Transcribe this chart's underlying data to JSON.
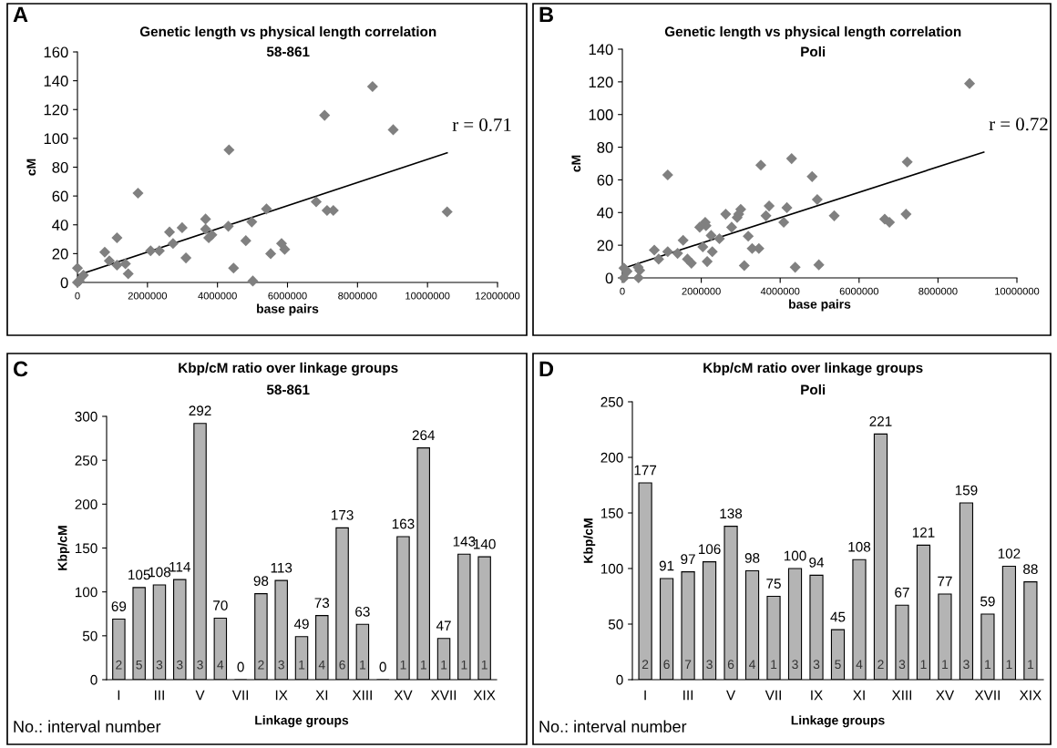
{
  "chart_data": [
    {
      "type": "scatter",
      "title": "Genetic length vs physical length correlation",
      "subtitle": "58-861",
      "xlabel": "base pairs",
      "ylabel": "cM",
      "xlim": [
        0,
        12000000
      ],
      "xticks": [
        0,
        2000000,
        4000000,
        6000000,
        8000000,
        10000000,
        12000000
      ],
      "ylim": [
        0,
        160
      ],
      "yticks": [
        0,
        20,
        40,
        60,
        80,
        100,
        120,
        140,
        160
      ],
      "annotations": [
        "A",
        {
          "text": "r = 0.71",
          "x": 10560000,
          "y": 90
        }
      ],
      "series": [
        {
          "type": "scatter",
          "marker": "diamond",
          "color": "#808080",
          "x": [
            0,
            0,
            170000,
            50000,
            780000,
            910000,
            1130000,
            1130000,
            1370000,
            1450000,
            1730000,
            2090000,
            2340000,
            2630000,
            2730000,
            2990000,
            3100000,
            3660000,
            3660000,
            3750000,
            3840000,
            4310000,
            4330000,
            4460000,
            4810000,
            4980000,
            5010000,
            5400000,
            5520000,
            5830000,
            5920000,
            6820000,
            7060000,
            7130000,
            7310000,
            8430000,
            9020000,
            10560000
          ],
          "values": [
            0,
            10,
            5,
            1,
            21,
            15,
            12,
            31,
            13,
            6,
            62,
            22,
            22,
            35,
            27,
            38,
            17,
            44,
            37,
            31,
            33,
            39,
            92,
            10,
            29,
            42,
            1,
            51,
            20,
            27,
            23,
            56,
            116,
            50,
            50,
            136,
            106,
            49
          ]
        },
        {
          "type": "line",
          "marker": "none",
          "color": "#000000",
          "x": [
            0,
            10560000
          ],
          "values": [
            5,
            90
          ]
        }
      ]
    },
    {
      "type": "scatter",
      "title": "Genetic length vs physical length correlation",
      "subtitle": "Poli",
      "xlabel": "base pairs",
      "ylabel": "cM",
      "xlim": [
        0,
        10000000
      ],
      "xticks": [
        0,
        2000000,
        4000000,
        6000000,
        8000000,
        10000000
      ],
      "ylim": [
        0,
        140
      ],
      "yticks": [
        0,
        20,
        40,
        60,
        80,
        100,
        120,
        140
      ],
      "annotations": [
        "B",
        {
          "text": "r = 0.72",
          "x": 9160000,
          "y": 77
        }
      ],
      "series": [
        {
          "type": "scatter",
          "marker": "diamond",
          "color": "#808080",
          "x": [
            40000,
            40000,
            120000,
            400000,
            440000,
            410000,
            810000,
            920000,
            1150000,
            1150000,
            1400000,
            1540000,
            1650000,
            1750000,
            1960000,
            2040000,
            2100000,
            2120000,
            2150000,
            2250000,
            2280000,
            2460000,
            2620000,
            2770000,
            2910000,
            2950000,
            3000000,
            3090000,
            3190000,
            3290000,
            3460000,
            3510000,
            3640000,
            3720000,
            4090000,
            4170000,
            4290000,
            4380000,
            4810000,
            4940000,
            4980000,
            5370000,
            6650000,
            6770000,
            7190000,
            7220000,
            8800000
          ],
          "values": [
            6,
            0,
            4,
            6.5,
            4.6,
            0,
            17,
            11.5,
            63,
            16,
            15,
            23,
            11.5,
            9,
            31,
            19,
            34,
            32,
            10,
            26,
            16,
            24,
            39,
            31,
            37,
            39,
            42,
            7.5,
            25.5,
            18,
            18,
            69,
            38,
            44,
            34,
            43,
            73,
            6.5,
            62,
            48,
            8,
            38,
            36,
            34,
            39,
            71,
            119
          ]
        },
        {
          "type": "line",
          "marker": "none",
          "color": "#000000",
          "x": [
            40000,
            9160000
          ],
          "values": [
            6,
            77
          ]
        }
      ]
    },
    {
      "type": "bar",
      "title": "Kbp/cM ratio over linkage groups",
      "subtitle": "58-861",
      "xlabel": "Linkage groups",
      "ylabel": "Kbp/cM",
      "ylim": [
        0,
        300
      ],
      "yticks": [
        0,
        50,
        100,
        150,
        200,
        250,
        300
      ],
      "data_labels": true,
      "color": "#b4b4b4",
      "categories": [
        "I",
        null,
        "III",
        null,
        "V",
        null,
        "VII",
        null,
        "IX",
        null,
        "XI",
        null,
        "XIII",
        null,
        "XV",
        null,
        "XVII",
        null,
        "XIX"
      ],
      "values": [
        69,
        105,
        108,
        114,
        292,
        70,
        0,
        98,
        113,
        49,
        73,
        173,
        63,
        0,
        163,
        264,
        47,
        143,
        140
      ],
      "annotations": [
        "C",
        "No.: interval number",
        "2",
        "5",
        "3",
        "3",
        "3",
        "4",
        "2",
        "3",
        "1",
        "4",
        "6",
        "1",
        "1",
        "1",
        "1",
        "1",
        "1"
      ]
    },
    {
      "type": "bar",
      "title": "Kbp/cM ratio over linkage groups",
      "subtitle": "Poli",
      "xlabel": "Linkage groups",
      "ylabel": "Kbp/cM",
      "ylim": [
        0,
        250
      ],
      "yticks": [
        0,
        50,
        100,
        150,
        200,
        250
      ],
      "data_labels": true,
      "color": "#b4b4b4",
      "categories": [
        "I",
        null,
        "III",
        null,
        "V",
        null,
        "VII",
        null,
        "IX",
        null,
        "XI",
        null,
        "XIII",
        null,
        "XV",
        null,
        "XVII",
        null,
        "XIX"
      ],
      "values": [
        177,
        91,
        97,
        106,
        138,
        98,
        75,
        100,
        94,
        45,
        108,
        221,
        67,
        121,
        77,
        159,
        59,
        102,
        88
      ],
      "annotations": [
        "D",
        "No.: interval number",
        "2",
        "6",
        "7",
        "3",
        "6",
        "4",
        "1",
        "3",
        "3",
        "5",
        "4",
        "2",
        "3",
        "1",
        "1",
        "3",
        "1",
        "1",
        "1"
      ]
    }
  ]
}
